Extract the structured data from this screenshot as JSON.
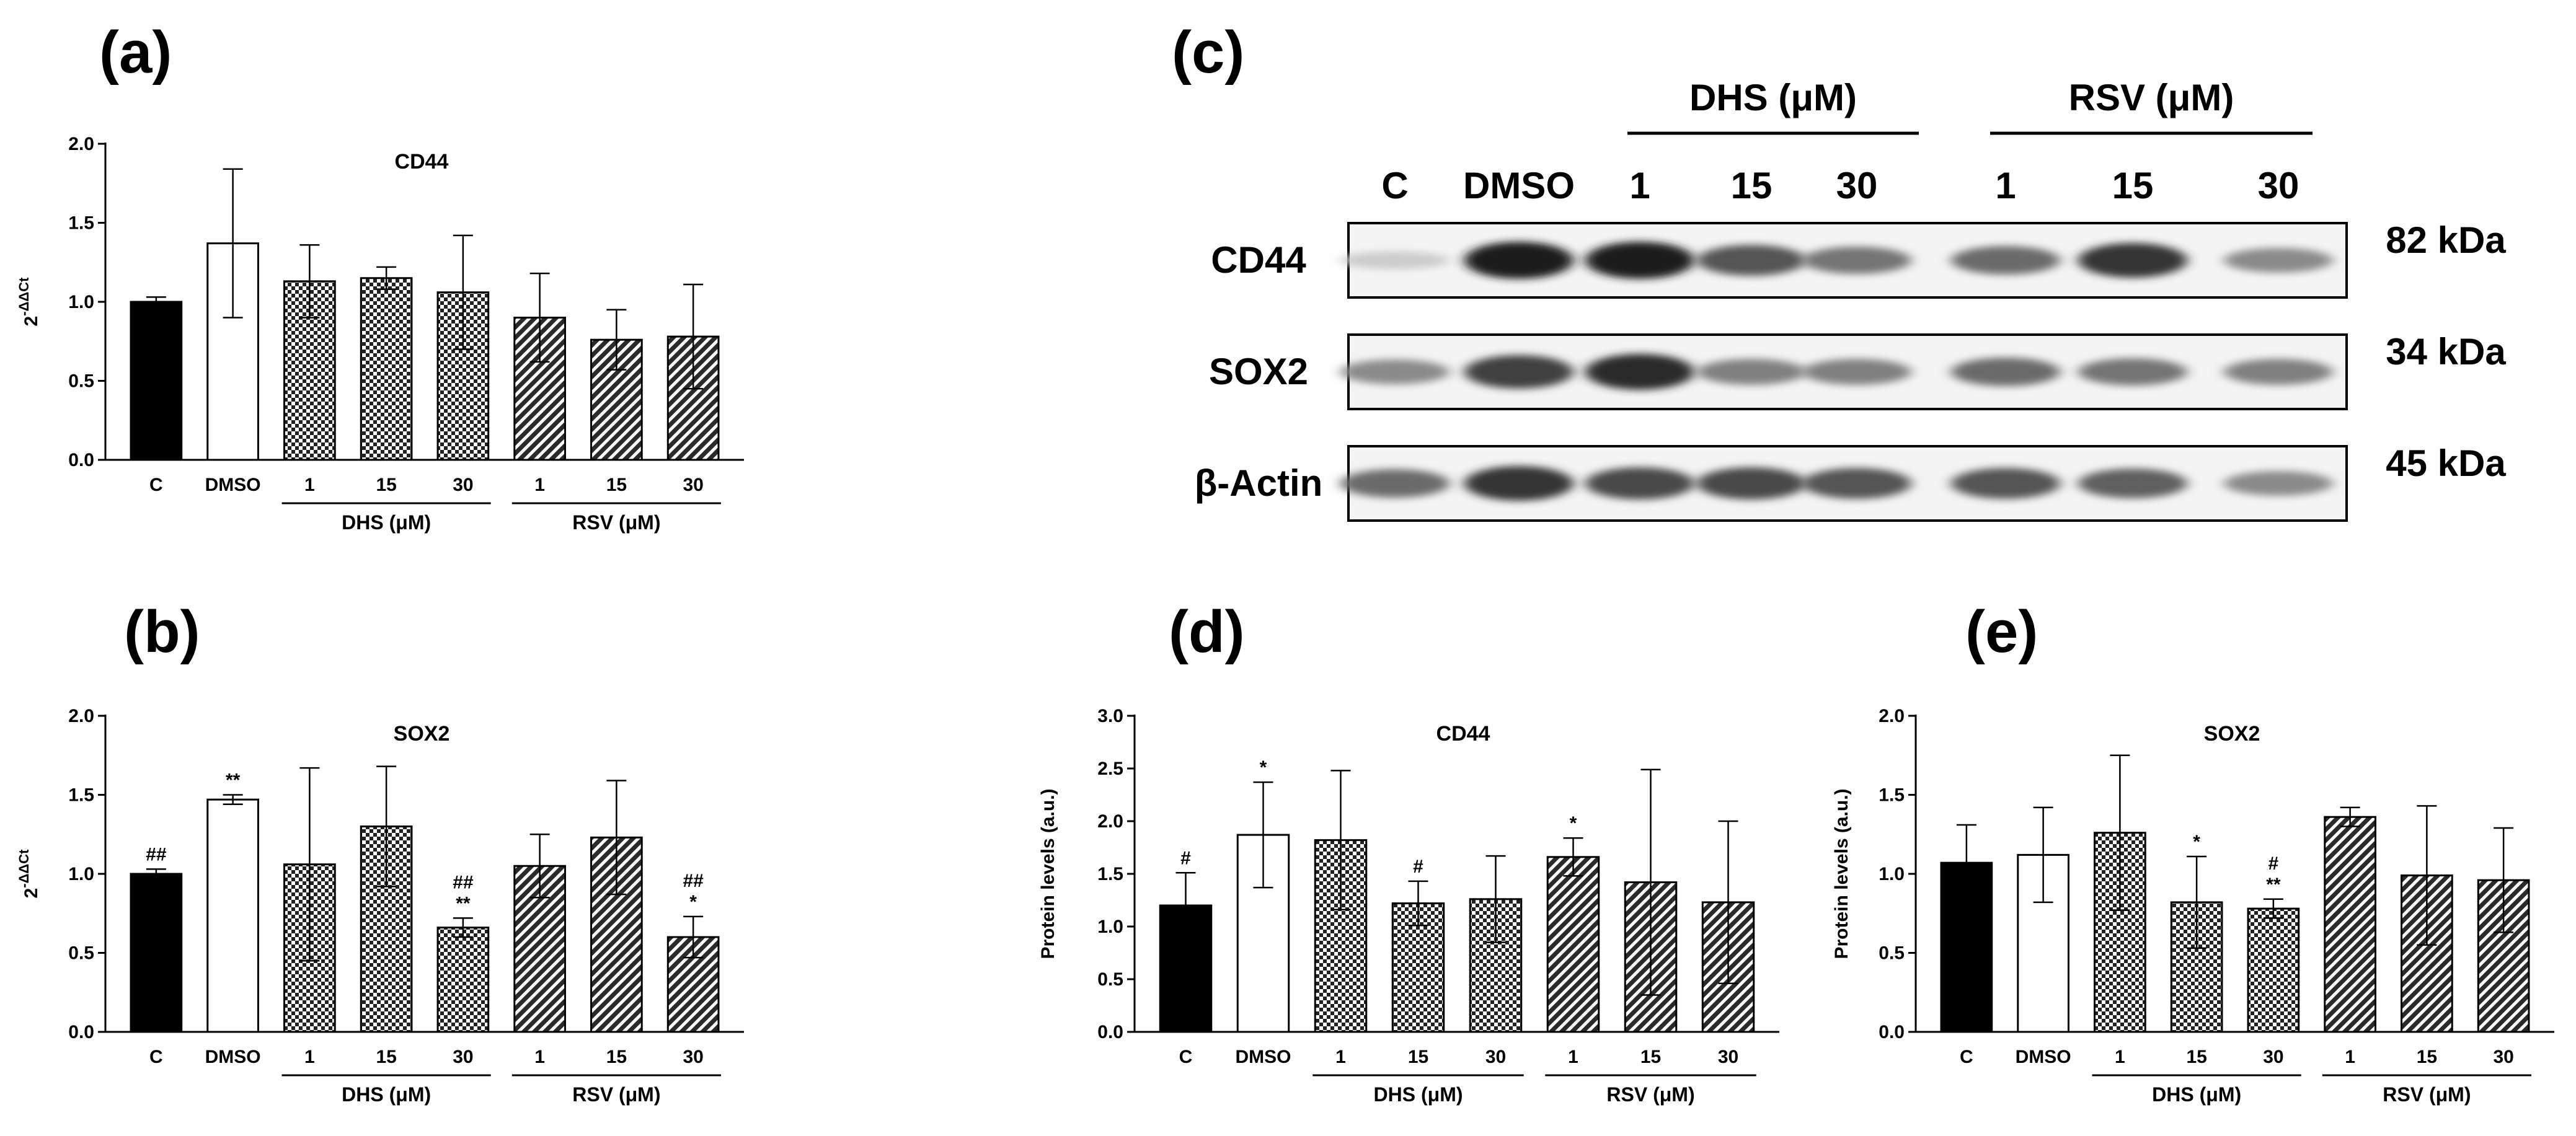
{
  "panels": {
    "a": "(a)",
    "b": "(b)",
    "c": "(c)",
    "d": "(d)",
    "e": "(e)"
  },
  "chart_data": [
    {
      "id": "a",
      "type": "bar",
      "title": "CD44",
      "ylabel_base": "2",
      "ylabel_sup": "-ΔΔCt",
      "ylim": [
        0,
        2.0
      ],
      "yticks": [
        "0.0",
        "0.5",
        "1.0",
        "1.5",
        "2.0"
      ],
      "categories": [
        "C",
        "DMSO",
        "1",
        "15",
        "30",
        "1",
        "15",
        "30"
      ],
      "values": [
        1.0,
        1.37,
        1.13,
        1.15,
        1.06,
        0.9,
        0.76,
        0.78
      ],
      "errors": [
        0.03,
        0.47,
        0.23,
        0.07,
        0.36,
        0.28,
        0.19,
        0.33
      ],
      "fills": [
        "solid",
        "white",
        "check",
        "check",
        "check",
        "hatch",
        "hatch",
        "hatch"
      ],
      "groups": [
        {
          "label": "DHS (μM)",
          "start": 2,
          "end": 4
        },
        {
          "label": "RSV (μM)",
          "start": 5,
          "end": 7
        }
      ],
      "annotations": [
        "",
        "",
        "",
        "",
        "",
        "",
        "",
        ""
      ]
    },
    {
      "id": "b",
      "type": "bar",
      "title": "SOX2",
      "ylabel_base": "2",
      "ylabel_sup": "-ΔΔCt",
      "ylim": [
        0,
        2.0
      ],
      "yticks": [
        "0.0",
        "0.5",
        "1.0",
        "1.5",
        "2.0"
      ],
      "categories": [
        "C",
        "DMSO",
        "1",
        "15",
        "30",
        "1",
        "15",
        "30"
      ],
      "values": [
        1.0,
        1.47,
        1.06,
        1.3,
        0.66,
        1.05,
        1.23,
        0.6
      ],
      "errors": [
        0.03,
        0.03,
        0.61,
        0.38,
        0.06,
        0.2,
        0.36,
        0.13
      ],
      "fills": [
        "solid",
        "white",
        "check",
        "check",
        "check",
        "hatch",
        "hatch",
        "hatch"
      ],
      "groups": [
        {
          "label": "DHS (μM)",
          "start": 2,
          "end": 4
        },
        {
          "label": "RSV (μM)",
          "start": 5,
          "end": 7
        }
      ],
      "annotations": [
        "##",
        "**",
        "",
        "",
        "##\n**",
        "",
        "",
        "##\n*"
      ]
    },
    {
      "id": "d",
      "type": "bar",
      "title": "CD44",
      "ylabel": "Protein levels (a.u.)",
      "ylim": [
        0,
        3.0
      ],
      "yticks": [
        "0.0",
        "0.5",
        "1.0",
        "1.5",
        "2.0",
        "2.5",
        "3.0"
      ],
      "categories": [
        "C",
        "DMSO",
        "1",
        "15",
        "30",
        "1",
        "15",
        "30"
      ],
      "values": [
        1.2,
        1.87,
        1.82,
        1.22,
        1.26,
        1.66,
        1.42,
        1.23
      ],
      "errors": [
        0.31,
        0.5,
        0.66,
        0.21,
        0.41,
        0.18,
        1.07,
        0.77
      ],
      "fills": [
        "solid",
        "white",
        "check",
        "check",
        "check",
        "hatch",
        "hatch",
        "hatch"
      ],
      "groups": [
        {
          "label": "DHS (μM)",
          "start": 2,
          "end": 4
        },
        {
          "label": "RSV (μM)",
          "start": 5,
          "end": 7
        }
      ],
      "annotations": [
        "#",
        "*",
        "",
        "#",
        "",
        "*",
        "",
        ""
      ]
    },
    {
      "id": "e",
      "type": "bar",
      "title": "SOX2",
      "ylabel": "Protein levels (a.u.)",
      "ylim": [
        0,
        2.0
      ],
      "yticks": [
        "0.0",
        "0.5",
        "1.0",
        "1.5",
        "2.0"
      ],
      "categories": [
        "C",
        "DMSO",
        "1",
        "15",
        "30",
        "1",
        "15",
        "30"
      ],
      "values": [
        1.07,
        1.12,
        1.26,
        0.82,
        0.78,
        1.36,
        0.99,
        0.96
      ],
      "errors": [
        0.24,
        0.3,
        0.49,
        0.29,
        0.06,
        0.06,
        0.44,
        0.33
      ],
      "fills": [
        "solid",
        "white",
        "check",
        "check",
        "check",
        "hatch",
        "hatch",
        "hatch"
      ],
      "groups": [
        {
          "label": "DHS (μM)",
          "start": 2,
          "end": 4
        },
        {
          "label": "RSV (μM)",
          "start": 5,
          "end": 7
        }
      ],
      "annotations": [
        "",
        "",
        "",
        "*",
        "#\n**",
        "",
        "",
        ""
      ]
    }
  ],
  "blot": {
    "group_dhs": "DHS (μM)",
    "group_rsv": "RSV (μM)",
    "lanes": [
      "C",
      "DMSO",
      "1",
      "15",
      "30",
      "1",
      "15",
      "30"
    ],
    "rows": [
      {
        "label": "CD44",
        "kda": "82 kDa",
        "intensity": [
          0.15,
          0.95,
          0.95,
          0.7,
          0.55,
          0.6,
          0.85,
          0.45
        ]
      },
      {
        "label": "SOX2",
        "kda": "34 kDa",
        "intensity": [
          0.45,
          0.8,
          0.9,
          0.5,
          0.5,
          0.6,
          0.55,
          0.5
        ]
      },
      {
        "label": "β-Actin",
        "kda": "45 kDa",
        "intensity": [
          0.6,
          0.85,
          0.75,
          0.75,
          0.7,
          0.7,
          0.65,
          0.45
        ]
      }
    ]
  }
}
